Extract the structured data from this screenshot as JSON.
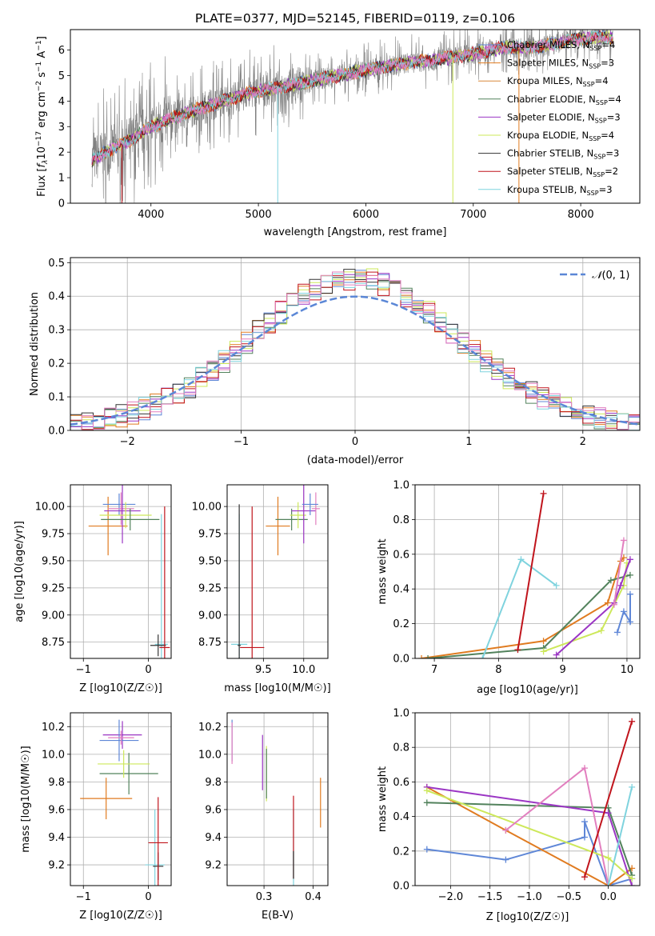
{
  "figure_title": "PLATE=0377, MJD=52145, FIBERID=0119, z=0.106",
  "colors": {
    "Chabrier MILES": "#5f87d7",
    "Salpeter MILES": "#e07b20",
    "Kroupa MILES": "#d8893a",
    "Chabrier ELODIE": "#52825c",
    "Salpeter ELODIE": "#9b36c4",
    "Kroupa ELODIE": "#cde85a",
    "Chabrier STELIB": "#333333",
    "Salpeter STELIB": "#c0141c",
    "Kroupa STELIB": "#7fd3de",
    "extra_pink": "#e27fbf",
    "data_grey": "#808080",
    "gaussian": "#5b87d6"
  },
  "chart_data": [
    {
      "id": "spectrum",
      "type": "line",
      "title": "PLATE=0377, MJD=52145, FIBERID=0119, z=0.106",
      "xlabel": "wavelength [Angstrom, rest frame]",
      "ylabel": "Flux [f_λ 10^-17 erg cm^-2 s^-1 A^-1]",
      "xlim": [
        3250,
        8550
      ],
      "ylim": [
        0,
        6.8
      ],
      "xticks": [
        4000,
        5000,
        6000,
        7000,
        8000
      ],
      "yticks": [
        0,
        1,
        2,
        3,
        4,
        5,
        6
      ],
      "grid": false,
      "legend_position": "upper-right",
      "legend": [
        {
          "label": "Chabrier MILES, N",
          "nssp": 4
        },
        {
          "label": "Salpeter MILES, N",
          "nssp": 3
        },
        {
          "label": "Kroupa MILES, N",
          "nssp": 4
        },
        {
          "label": "Chabrier ELODIE, N",
          "nssp": 4
        },
        {
          "label": "Salpeter ELODIE, N",
          "nssp": 3
        },
        {
          "label": "Kroupa ELODIE, N",
          "nssp": 4
        },
        {
          "label": "Chabrier STELIB, N",
          "nssp": 3
        },
        {
          "label": "Salpeter STELIB, N",
          "nssp": 2
        },
        {
          "label": "Kroupa STELIB, N",
          "nssp": 3
        }
      ],
      "legend_sub": "SSP",
      "legend_sep": "=",
      "continuum": {
        "x": [
          3450,
          3600,
          3800,
          4000,
          4300,
          4600,
          4900,
          5200,
          5500,
          5800,
          6100,
          6400,
          6700,
          7000,
          7300,
          7600,
          7900,
          8200,
          8300
        ],
        "y": [
          1.7,
          2.05,
          2.45,
          3.0,
          3.5,
          3.9,
          4.3,
          4.55,
          4.8,
          5.05,
          5.3,
          5.5,
          5.65,
          5.85,
          6.1,
          6.1,
          6.4,
          6.5,
          6.5
        ]
      }
    },
    {
      "id": "residuals",
      "type": "step-histogram",
      "xlabel": "(data-model)/error",
      "ylabel": "Normed distribution",
      "xlim": [
        -2.5,
        2.5
      ],
      "ylim": [
        0,
        0.515
      ],
      "xticks": [
        -2,
        -1,
        0,
        1,
        2
      ],
      "yticks": [
        0.0,
        0.1,
        0.2,
        0.3,
        0.4,
        0.5
      ],
      "grid": true,
      "legend_position": "upper-right",
      "gaussian_label": "N(0,1)",
      "bin_width": 0.1
    },
    {
      "id": "age-Z",
      "type": "errorbar",
      "xlabel": "Z [log10(Z/Z☉)]",
      "ylabel": "age  [log10(age/yr)]",
      "xlim": [
        -1.2,
        0.35
      ],
      "ylim": [
        8.6,
        10.2
      ],
      "xticks": [
        -1,
        0
      ],
      "yticks": [
        8.75,
        9.0,
        9.25,
        9.5,
        9.75,
        10.0
      ],
      "points": [
        {
          "s": "Salpeter MILES",
          "x": -0.62,
          "y": 9.82,
          "xe": 0.3,
          "ye": 0.27
        },
        {
          "s": "Chabrier MILES",
          "x": -0.45,
          "y": 10.02,
          "xe": 0.25,
          "ye": 0.1
        },
        {
          "s": "extra_pink",
          "x": -0.42,
          "y": 9.98,
          "xe": 0.2,
          "ye": 0.15
        },
        {
          "s": "Salpeter ELODIE",
          "x": -0.4,
          "y": 9.96,
          "xe": 0.28,
          "ye": 0.3
        },
        {
          "s": "Kroupa ELODIE",
          "x": -0.35,
          "y": 9.92,
          "xe": 0.4,
          "ye": 0.12
        },
        {
          "s": "Chabrier ELODIE",
          "x": -0.28,
          "y": 9.88,
          "xe": 0.45,
          "ye": 0.1
        },
        {
          "s": "Kroupa STELIB",
          "x": 0.2,
          "y": 8.73,
          "xe": 0.1,
          "ye": 1.2
        },
        {
          "s": "Chabrier STELIB",
          "x": 0.15,
          "y": 8.72,
          "xe": 0.12,
          "ye": 0.1
        },
        {
          "s": "Salpeter STELIB",
          "x": 0.25,
          "y": 8.7,
          "xe": 0.08,
          "ye": 1.3
        }
      ]
    },
    {
      "id": "age-mass",
      "type": "errorbar",
      "xlabel": "mass [log10(M/M☉)]",
      "ylabel": "",
      "xlim": [
        9.05,
        10.3
      ],
      "ylim": [
        8.6,
        10.2
      ],
      "xticks": [
        9.5,
        10.0
      ],
      "yticks": [
        8.75,
        9.0,
        9.25,
        9.5,
        9.75,
        10.0
      ],
      "points": [
        {
          "s": "Salpeter MILES",
          "x": 9.68,
          "y": 9.82,
          "xe": 0.15,
          "ye": 0.27
        },
        {
          "s": "Chabrier ELODIE",
          "x": 9.85,
          "y": 9.88,
          "xe": 0.2,
          "ye": 0.1
        },
        {
          "s": "Kroupa ELODIE",
          "x": 9.93,
          "y": 9.92,
          "xe": 0.1,
          "ye": 0.12
        },
        {
          "s": "Salpeter ELODIE",
          "x": 10.0,
          "y": 9.96,
          "xe": 0.15,
          "ye": 0.3
        },
        {
          "s": "extra_pink",
          "x": 10.15,
          "y": 9.98,
          "xe": 0.05,
          "ye": 0.15
        },
        {
          "s": "Chabrier MILES",
          "x": 10.08,
          "y": 10.02,
          "xe": 0.1,
          "ye": 0.1
        },
        {
          "s": "Kroupa STELIB",
          "x": 9.2,
          "y": 8.73,
          "xe": 0.1,
          "ye": 1.2
        },
        {
          "s": "Chabrier STELIB",
          "x": 9.2,
          "y": 8.72,
          "xe": 0.02,
          "ye": 1.3
        },
        {
          "s": "Salpeter STELIB",
          "x": 9.36,
          "y": 8.7,
          "xe": 0.15,
          "ye": 1.3
        }
      ]
    },
    {
      "id": "massweight-age",
      "type": "line",
      "xlabel": "age  [log10(age/yr)]",
      "ylabel": "mass weight",
      "xlim": [
        6.7,
        10.2
      ],
      "ylim": [
        0,
        1.0
      ],
      "xticks": [
        7,
        8,
        9,
        10
      ],
      "yticks": [
        0.0,
        0.2,
        0.4,
        0.6,
        0.8,
        1.0
      ],
      "series": [
        {
          "s": "Salpeter MILES",
          "x": [
            6.8,
            8.7,
            9.7,
            9.9,
            9.95
          ],
          "y": [
            0.0,
            0.1,
            0.32,
            0.56,
            0.58
          ]
        },
        {
          "s": "Chabrier ELODIE",
          "x": [
            6.9,
            8.7,
            9.75,
            10.05
          ],
          "y": [
            0.0,
            0.06,
            0.45,
            0.48
          ]
        },
        {
          "s": "Kroupa ELODIE",
          "x": [
            8.7,
            9.6,
            9.95,
            10.0
          ],
          "y": [
            0.04,
            0.16,
            0.42,
            0.55
          ]
        },
        {
          "s": "Salpeter ELODIE",
          "x": [
            8.9,
            9.8,
            9.9,
            10.05
          ],
          "y": [
            0.02,
            0.32,
            0.42,
            0.57
          ]
        },
        {
          "s": "extra_pink",
          "x": [
            9.8,
            9.95
          ],
          "y": [
            0.31,
            0.68
          ]
        },
        {
          "s": "Chabrier MILES",
          "x": [
            9.85,
            9.95,
            10.05,
            10.05
          ],
          "y": [
            0.15,
            0.27,
            0.21,
            0.37
          ]
        },
        {
          "s": "Kroupa STELIB",
          "x": [
            7.75,
            8.35,
            8.9
          ],
          "y": [
            0.0,
            0.57,
            0.42
          ]
        },
        {
          "s": "Salpeter STELIB",
          "x": [
            8.3,
            8.7
          ],
          "y": [
            0.05,
            0.95
          ]
        }
      ]
    },
    {
      "id": "mass-Z",
      "type": "errorbar",
      "xlabel": "Z [log10(Z/Z☉)]",
      "ylabel": "mass [log10(M/M☉)]",
      "xlim": [
        -1.2,
        0.35
      ],
      "ylim": [
        9.05,
        10.3
      ],
      "xticks": [
        -1,
        0
      ],
      "yticks": [
        9.2,
        9.4,
        9.6,
        9.8,
        10.0,
        10.2
      ],
      "points": [
        {
          "s": "Salpeter MILES",
          "x": -0.65,
          "y": 9.68,
          "xe": 0.4,
          "ye": 0.15
        },
        {
          "s": "Chabrier ELODIE",
          "x": -0.3,
          "y": 9.86,
          "xe": 0.45,
          "ye": 0.15
        },
        {
          "s": "Kroupa ELODIE",
          "x": -0.38,
          "y": 9.93,
          "xe": 0.4,
          "ye": 0.1
        },
        {
          "s": "Salpeter ELODIE",
          "x": -0.4,
          "y": 10.14,
          "xe": 0.3,
          "ye": 0.1
        },
        {
          "s": "Chabrier MILES",
          "x": -0.45,
          "y": 10.1,
          "xe": 0.3,
          "ye": 0.15
        },
        {
          "s": "extra_pink",
          "x": -0.42,
          "y": 10.12,
          "xe": 0.2,
          "ye": 0.05
        },
        {
          "s": "Kroupa STELIB",
          "x": 0.1,
          "y": 9.2,
          "xe": 0.15,
          "ye": 0.4
        },
        {
          "s": "Chabrier STELIB",
          "x": 0.15,
          "y": 9.19,
          "xe": 0.08,
          "ye": 0.1
        },
        {
          "s": "Salpeter STELIB",
          "x": 0.15,
          "y": 9.36,
          "xe": 0.15,
          "ye": 0.33
        }
      ]
    },
    {
      "id": "mass-ebv",
      "type": "errorbar",
      "xlabel": "E(B-V)",
      "ylabel": "",
      "xlim": [
        0.225,
        0.43
      ],
      "ylim": [
        9.05,
        10.3
      ],
      "xticks": [
        0.3,
        0.4
      ],
      "yticks": [
        9.2,
        9.4,
        9.6,
        9.8,
        10.0,
        10.2
      ],
      "points": [
        {
          "s": "Chabrier MILES",
          "x": 0.235,
          "y": 10.1,
          "xe": 0,
          "ye": 0.15
        },
        {
          "s": "extra_pink",
          "x": 0.235,
          "y": 10.08,
          "xe": 0,
          "ye": 0.15
        },
        {
          "s": "Salpeter ELODIE",
          "x": 0.297,
          "y": 9.94,
          "xe": 0,
          "ye": 0.2
        },
        {
          "s": "Kroupa ELODIE",
          "x": 0.305,
          "y": 9.86,
          "xe": 0,
          "ye": 0.2
        },
        {
          "s": "Chabrier ELODIE",
          "x": 0.305,
          "y": 9.86,
          "xe": 0,
          "ye": 0.18
        },
        {
          "s": "Kroupa STELIB",
          "x": 0.36,
          "y": 9.3,
          "xe": 0,
          "ye": 0.3
        },
        {
          "s": "Salpeter STELIB",
          "x": 0.36,
          "y": 9.4,
          "xe": 0,
          "ye": 0.3
        },
        {
          "s": "Chabrier STELIB",
          "x": 0.36,
          "y": 9.2,
          "xe": 0,
          "ye": 0.1
        },
        {
          "s": "Salpeter MILES",
          "x": 0.415,
          "y": 9.65,
          "xe": 0,
          "ye": 0.18
        }
      ]
    },
    {
      "id": "massweight-Z",
      "type": "line",
      "xlabel": "Z [log10(Z/Z☉)]",
      "ylabel": "mass weight",
      "xlim": [
        -2.45,
        0.4
      ],
      "ylim": [
        0,
        1.0
      ],
      "xticks": [
        -2.0,
        -1.5,
        -1.0,
        -0.5,
        0.0
      ],
      "yticks": [
        0.0,
        0.2,
        0.4,
        0.6,
        0.8,
        1.0
      ],
      "series": [
        {
          "s": "Chabrier MILES",
          "x": [
            -2.3,
            -1.3,
            -0.3,
            -0.3,
            0.0,
            0.3
          ],
          "y": [
            0.21,
            0.15,
            0.28,
            0.37,
            0.0,
            0.04
          ]
        },
        {
          "s": "Salpeter MILES",
          "x": [
            -2.3,
            -1.3,
            0.0,
            0.3
          ],
          "y": [
            0.57,
            0.32,
            0.0,
            0.1
          ]
        },
        {
          "s": "Chabrier ELODIE",
          "x": [
            -2.3,
            0.0,
            0.3
          ],
          "y": [
            0.48,
            0.45,
            0.06
          ]
        },
        {
          "s": "Salpeter ELODIE",
          "x": [
            -2.3,
            0.0,
            0.3
          ],
          "y": [
            0.57,
            0.42,
            0.0
          ]
        },
        {
          "s": "Kroupa ELODIE",
          "x": [
            -2.3,
            0.0,
            0.3
          ],
          "y": [
            0.55,
            0.16,
            0.04
          ]
        },
        {
          "s": "extra_pink",
          "x": [
            -1.3,
            -0.3,
            0.0
          ],
          "y": [
            0.32,
            0.68,
            0.0
          ]
        },
        {
          "s": "Kroupa STELIB",
          "x": [
            0.0,
            0.3
          ],
          "y": [
            0.0,
            0.57
          ]
        },
        {
          "s": "Salpeter STELIB",
          "x": [
            -0.3,
            0.3
          ],
          "y": [
            0.05,
            0.95
          ]
        }
      ]
    }
  ]
}
